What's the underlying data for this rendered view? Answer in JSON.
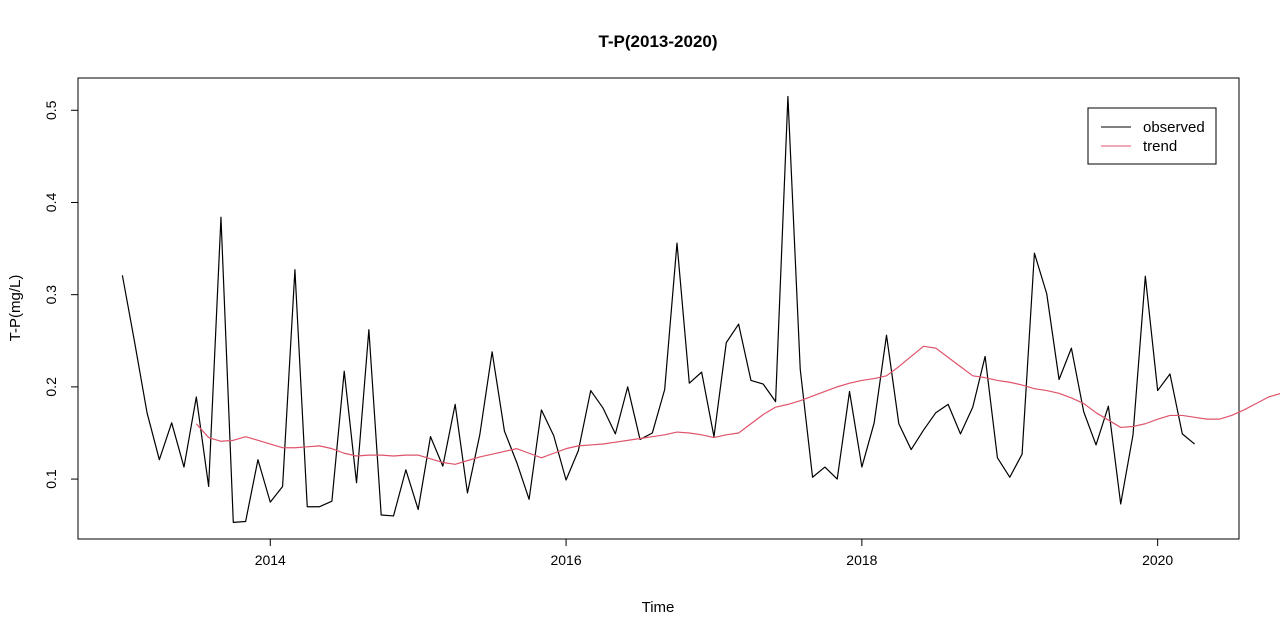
{
  "chart_data": {
    "type": "line",
    "title": "T-P(2013-2020)",
    "xlabel": "Time",
    "ylabel": "T-P(mg/L)",
    "xlim": [
      2012.7,
      2020.55
    ],
    "ylim": [
      0.035,
      0.535
    ],
    "x_ticks": [
      2014,
      2016,
      2018,
      2020
    ],
    "x_tick_labels": [
      "2014",
      "2016",
      "2018",
      "2020"
    ],
    "y_ticks": [
      0.1,
      0.2,
      0.3,
      0.4,
      0.5
    ],
    "y_tick_labels": [
      "0.1",
      "0.2",
      "0.3",
      "0.4",
      "0.5"
    ],
    "grid": false,
    "legend": {
      "position": "top-right",
      "entries": [
        {
          "label": "observed",
          "color": "#000000"
        },
        {
          "label": "trend",
          "color": "#DF536B"
        }
      ]
    },
    "series": [
      {
        "name": "observed",
        "color": "#000000",
        "start": 2013.0,
        "step": 0.0833333,
        "values": [
          0.321,
          0.248,
          0.172,
          0.121,
          0.161,
          0.113,
          0.189,
          0.092,
          0.384,
          0.053,
          0.054,
          0.121,
          0.075,
          0.092,
          0.327,
          0.07,
          0.07,
          0.076,
          0.217,
          0.096,
          0.262,
          0.061,
          0.06,
          0.11,
          0.067,
          0.146,
          0.114,
          0.181,
          0.085,
          0.148,
          0.238,
          0.152,
          0.118,
          0.078,
          0.175,
          0.147,
          0.099,
          0.131,
          0.196,
          0.177,
          0.149,
          0.2,
          0.143,
          0.15,
          0.197,
          0.356,
          0.204,
          0.216,
          0.146,
          0.248,
          0.268,
          0.207,
          0.203,
          0.184,
          0.515,
          0.219,
          0.102,
          0.113,
          0.1,
          0.195,
          0.113,
          0.161,
          0.256,
          0.16,
          0.132,
          0.153,
          0.172,
          0.181,
          0.149,
          0.178,
          0.233,
          0.123,
          0.102,
          0.127,
          0.345,
          0.301,
          0.208,
          0.242,
          0.173,
          0.137,
          0.179,
          0.073,
          0.148,
          0.32,
          0.196,
          0.214,
          0.149,
          0.138
        ]
      },
      {
        "name": "trend",
        "color": "#DF536B",
        "start": 2013.5,
        "step": 0.0833333,
        "values": [
          0.16,
          0.145,
          0.141,
          0.142,
          0.146,
          0.142,
          0.138,
          0.134,
          0.134,
          0.135,
          0.136,
          0.133,
          0.128,
          0.125,
          0.126,
          0.126,
          0.125,
          0.126,
          0.126,
          0.122,
          0.118,
          0.116,
          0.12,
          0.124,
          0.127,
          0.13,
          0.133,
          0.128,
          0.123,
          0.128,
          0.133,
          0.136,
          0.137,
          0.138,
          0.14,
          0.142,
          0.144,
          0.146,
          0.148,
          0.151,
          0.15,
          0.148,
          0.145,
          0.148,
          0.15,
          0.16,
          0.17,
          0.178,
          0.181,
          0.185,
          0.19,
          0.195,
          0.2,
          0.204,
          0.207,
          0.209,
          0.212,
          0.222,
          0.233,
          0.244,
          0.242,
          0.232,
          0.222,
          0.212,
          0.21,
          0.207,
          0.205,
          0.202,
          0.198,
          0.196,
          0.193,
          0.188,
          0.182,
          0.172,
          0.164,
          0.156,
          0.157,
          0.16,
          0.165,
          0.169,
          0.169,
          0.167,
          0.165,
          0.165,
          0.169,
          0.175,
          0.182,
          0.189,
          0.193,
          0.196,
          0.195,
          0.195,
          0.193,
          0.19,
          0.183,
          0.187,
          0.196,
          0.204,
          0.208,
          0.204,
          0.188
        ]
      }
    ]
  }
}
